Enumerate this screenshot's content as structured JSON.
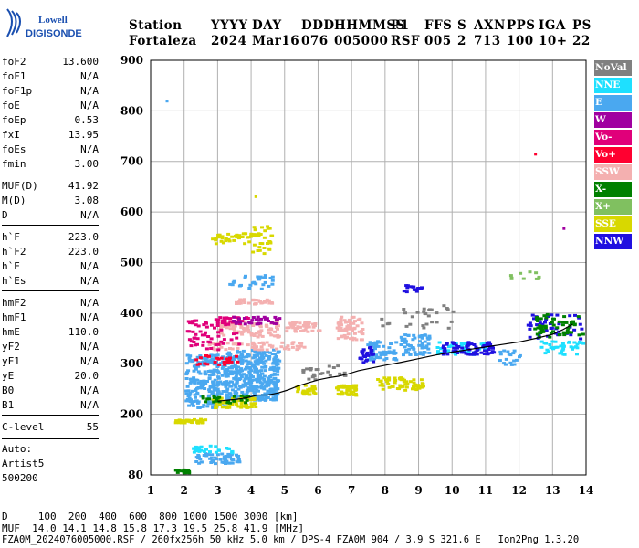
{
  "logo": {
    "top": "Lowell",
    "bottom": "DIGISONDE"
  },
  "header": {
    "row1": [
      "Station",
      "YYYY",
      "DAY",
      "DDD",
      "HHMMSS",
      "P1",
      "FFS",
      "S",
      "AXN",
      "PPS",
      "IGA",
      "PS"
    ],
    "row2": [
      "Fortaleza",
      "2024",
      "Mar16",
      "076",
      "005000",
      "RSF",
      "005",
      "2",
      "713",
      "100",
      "10+",
      "22"
    ]
  },
  "params": [
    {
      "name": "foF2",
      "value": "13.600"
    },
    {
      "name": "foF1",
      "value": "N/A"
    },
    {
      "name": "foF1p",
      "value": "N/A"
    },
    {
      "name": "foE",
      "value": "N/A"
    },
    {
      "name": "foEp",
      "value": "0.53"
    },
    {
      "name": "fxI",
      "value": "13.95"
    },
    {
      "name": "foEs",
      "value": "N/A"
    },
    {
      "name": "fmin",
      "value": "3.00"
    },
    {
      "name": "MUF(D)",
      "value": "41.92"
    },
    {
      "name": "M(D)",
      "value": "3.08"
    },
    {
      "name": "D",
      "value": "N/A"
    },
    {
      "name": "h`F",
      "value": "223.0"
    },
    {
      "name": "h`F2",
      "value": "223.0"
    },
    {
      "name": "h`E",
      "value": "N/A"
    },
    {
      "name": "h`Es",
      "value": "N/A"
    },
    {
      "name": "hmF2",
      "value": "N/A"
    },
    {
      "name": "hmF1",
      "value": "N/A"
    },
    {
      "name": "hmE",
      "value": "110.0"
    },
    {
      "name": "yF2",
      "value": "N/A"
    },
    {
      "name": "yF1",
      "value": "N/A"
    },
    {
      "name": "yE",
      "value": "20.0"
    },
    {
      "name": "B0",
      "value": "N/A"
    },
    {
      "name": "B1",
      "value": "N/A"
    },
    {
      "name": "C-level",
      "value": "55"
    }
  ],
  "auto": [
    "Auto:",
    "Artist5",
    "500200"
  ],
  "legend": [
    {
      "label": "NoVal",
      "color": "#808080"
    },
    {
      "label": "NNE",
      "color": "#1ee0ff"
    },
    {
      "label": "E",
      "color": "#4aa8f0"
    },
    {
      "label": "W",
      "color": "#a000a0"
    },
    {
      "label": "Vo-",
      "color": "#e0007a"
    },
    {
      "label": "Vo+",
      "color": "#ff0030"
    },
    {
      "label": "SSW",
      "color": "#f4b0b0"
    },
    {
      "label": "X-",
      "color": "#008000"
    },
    {
      "label": "X+",
      "color": "#80c060"
    },
    {
      "label": "SSE",
      "color": "#d8d800"
    },
    {
      "label": "NNW",
      "color": "#2010e0"
    }
  ],
  "footer": {
    "d_row": "D     100  200  400  600  800 1000 1500 3000 [km]",
    "muf_row": "MUF  14.0 14.1 14.8 15.8 17.3 19.5 25.8 41.9 [MHz]",
    "info_row": "FZA0M_2024076005000.RSF / 260fx256h 50 kHz 5.0 km / DPS-4 FZA0M 904 / 3.9 S 321.6 E   Ion2Png 1.3.20"
  },
  "chart_data": {
    "type": "scatter",
    "xlim": [
      1,
      14
    ],
    "ylim": [
      80,
      900
    ],
    "xticks": [
      "1",
      "2",
      "3",
      "4",
      "5",
      "6",
      "7",
      "8",
      "9",
      "10",
      "11",
      "12",
      "13",
      "14"
    ],
    "yticks": [
      "900",
      "800",
      "700",
      "600",
      "500",
      "400",
      "300",
      "200",
      "80"
    ],
    "trace": {
      "x": [
        3.0,
        3.3,
        3.6,
        3.9,
        4.2,
        4.5,
        4.8,
        5.1,
        5.4,
        5.7,
        6.0,
        6.3,
        6.6,
        6.9,
        7.2,
        7.5,
        8.0,
        8.5,
        9.0,
        9.5,
        10.0,
        10.5,
        11.0,
        11.5,
        12.0,
        12.5,
        13.0,
        13.3,
        13.6
      ],
      "y": [
        226,
        228,
        230,
        233,
        238,
        238,
        242,
        248,
        256,
        262,
        268,
        272,
        275,
        280,
        286,
        290,
        297,
        303,
        310,
        317,
        323,
        328,
        333,
        338,
        343,
        350,
        358,
        367,
        378
      ]
    },
    "clusters": [
      {
        "color": "#4aa8f0",
        "x": [
          2.0,
          3.2
        ],
        "y": [
          215,
          320
        ],
        "n": 220
      },
      {
        "color": "#4aa8f0",
        "x": [
          3.2,
          4.8
        ],
        "y": [
          230,
          330
        ],
        "n": 420
      },
      {
        "color": "#4aa8f0",
        "x": [
          2.2,
          3.6
        ],
        "y": [
          105,
          125
        ],
        "n": 60
      },
      {
        "color": "#4aa8f0",
        "x": [
          3.3,
          4.6
        ],
        "y": [
          450,
          480
        ],
        "n": 28
      },
      {
        "color": "#4aa8f0",
        "x": [
          7.4,
          8.3
        ],
        "y": [
          310,
          350
        ],
        "n": 60
      },
      {
        "color": "#4aa8f0",
        "x": [
          8.4,
          9.3
        ],
        "y": [
          320,
          360
        ],
        "n": 60
      },
      {
        "color": "#4aa8f0",
        "x": [
          11.3,
          12.0
        ],
        "y": [
          300,
          330
        ],
        "n": 20
      },
      {
        "color": "#1ee0ff",
        "x": [
          9.5,
          11.0
        ],
        "y": [
          320,
          345
        ],
        "n": 40
      },
      {
        "color": "#1ee0ff",
        "x": [
          12.6,
          13.9
        ],
        "y": [
          320,
          350
        ],
        "n": 40
      },
      {
        "color": "#1ee0ff",
        "x": [
          2.2,
          3.4
        ],
        "y": [
          125,
          140
        ],
        "n": 30
      },
      {
        "color": "#d8d800",
        "x": [
          1.7,
          2.6
        ],
        "y": [
          185,
          193
        ],
        "n": 40
      },
      {
        "color": "#d8d800",
        "x": [
          2.8,
          4.6
        ],
        "y": [
          540,
          560
        ],
        "n": 50
      },
      {
        "color": "#d8d800",
        "x": [
          4.0,
          4.6
        ],
        "y": [
          520,
          575
        ],
        "n": 20
      },
      {
        "color": "#d8d800",
        "x": [
          2.8,
          4.1
        ],
        "y": [
          215,
          235
        ],
        "n": 60
      },
      {
        "color": "#d8d800",
        "x": [
          6.5,
          7.1
        ],
        "y": [
          240,
          260
        ],
        "n": 40
      },
      {
        "color": "#d8d800",
        "x": [
          7.7,
          9.1
        ],
        "y": [
          250,
          275
        ],
        "n": 60
      },
      {
        "color": "#d8d800",
        "x": [
          5.3,
          5.9
        ],
        "y": [
          240,
          260
        ],
        "n": 30
      },
      {
        "color": "#f4b0b0",
        "x": [
          3.0,
          4.8
        ],
        "y": [
          355,
          385
        ],
        "n": 90
      },
      {
        "color": "#f4b0b0",
        "x": [
          5.0,
          6.0
        ],
        "y": [
          365,
          385
        ],
        "n": 50
      },
      {
        "color": "#f4b0b0",
        "x": [
          6.5,
          7.3
        ],
        "y": [
          350,
          395
        ],
        "n": 60
      },
      {
        "color": "#f4b0b0",
        "x": [
          2.7,
          5.6
        ],
        "y": [
          330,
          345
        ],
        "n": 60
      },
      {
        "color": "#f4b0b0",
        "x": [
          3.4,
          4.6
        ],
        "y": [
          420,
          430
        ],
        "n": 30
      },
      {
        "color": "#e0007a",
        "x": [
          2.0,
          3.6
        ],
        "y": [
          330,
          390
        ],
        "n": 60
      },
      {
        "color": "#e0007a",
        "x": [
          2.9,
          3.9
        ],
        "y": [
          380,
          395
        ],
        "n": 25
      },
      {
        "color": "#ff0030",
        "x": [
          2.2,
          3.6
        ],
        "y": [
          300,
          320
        ],
        "n": 25
      },
      {
        "color": "#a000a0",
        "x": [
          3.3,
          4.8
        ],
        "y": [
          380,
          395
        ],
        "n": 35
      },
      {
        "color": "#2010e0",
        "x": [
          7.2,
          7.6
        ],
        "y": [
          305,
          335
        ],
        "n": 25
      },
      {
        "color": "#2010e0",
        "x": [
          9.6,
          11.2
        ],
        "y": [
          320,
          345
        ],
        "n": 70
      },
      {
        "color": "#2010e0",
        "x": [
          8.5,
          9.1
        ],
        "y": [
          440,
          460
        ],
        "n": 15
      },
      {
        "color": "#2010e0",
        "x": [
          12.2,
          13.9
        ],
        "y": [
          350,
          400
        ],
        "n": 40
      },
      {
        "color": "#008000",
        "x": [
          2.4,
          3.9
        ],
        "y": [
          225,
          240
        ],
        "n": 25
      },
      {
        "color": "#008000",
        "x": [
          12.4,
          13.9
        ],
        "y": [
          355,
          400
        ],
        "n": 55
      },
      {
        "color": "#008000",
        "x": [
          1.7,
          2.1
        ],
        "y": [
          85,
          93
        ],
        "n": 12
      },
      {
        "color": "#80c060",
        "x": [
          11.7,
          12.6
        ],
        "y": [
          470,
          485
        ],
        "n": 10
      },
      {
        "color": "#808080",
        "x": [
          7.8,
          10.0
        ],
        "y": [
          370,
          420
        ],
        "n": 30
      },
      {
        "color": "#808080",
        "x": [
          5.5,
          6.8
        ],
        "y": [
          270,
          300
        ],
        "n": 25
      }
    ],
    "singles": [
      {
        "color": "#4aa8f0",
        "x": 1.45,
        "y": 822
      },
      {
        "color": "#ff0030",
        "x": 12.45,
        "y": 717
      },
      {
        "color": "#a000a0",
        "x": 13.3,
        "y": 570
      },
      {
        "color": "#d8d800",
        "x": 4.1,
        "y": 633
      }
    ]
  }
}
